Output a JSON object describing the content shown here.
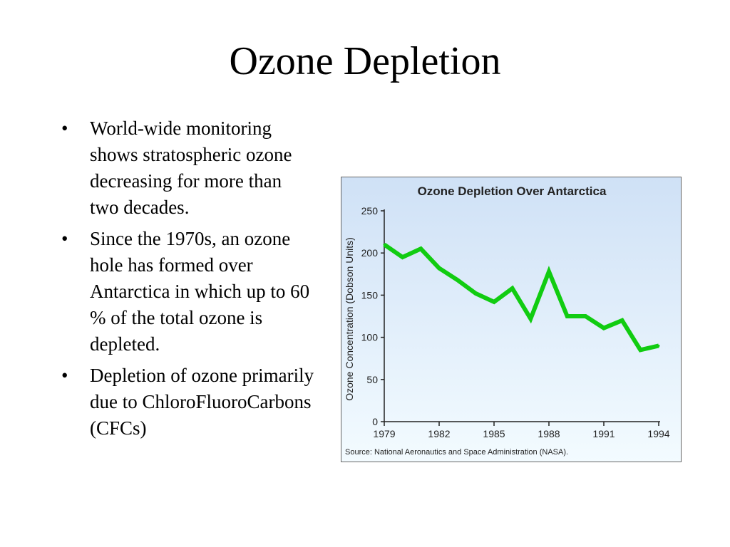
{
  "slide": {
    "title": "Ozone Depletion",
    "bullets": [
      "World-wide monitoring shows stratospheric ozone decreasing for more than two decades.",
      "Since the 1970s, an ozone hole has formed over Antarctica in which up to 60 % of the total ozone is depleted.",
      "Depletion of ozone primarily due to ChloroFluoroCarbons (CFCs)"
    ],
    "bullet_symbol": "•"
  },
  "chart_data": {
    "type": "line",
    "title": "Ozone Depletion Over Antarctica",
    "ylabel": "Ozone Concentration (Dobson Units)",
    "xlabel": "",
    "source": "Source: National Aeronautics and Space Administration (NASA).",
    "xlim": [
      1979,
      1994
    ],
    "ylim": [
      0,
      250
    ],
    "xticks": [
      1979,
      1982,
      1985,
      1988,
      1991,
      1994
    ],
    "yticks": [
      0,
      50,
      100,
      150,
      200,
      250
    ],
    "grid": false,
    "series": [
      {
        "color": "#11cc11",
        "x": [
          1979,
          1980,
          1981,
          1982,
          1983,
          1984,
          1985,
          1986,
          1987,
          1988,
          1989,
          1990,
          1991,
          1992,
          1993,
          1994
        ],
        "y": [
          210,
          195,
          205,
          182,
          168,
          152,
          142,
          158,
          122,
          178,
          125,
          125,
          111,
          120,
          85,
          90
        ]
      }
    ],
    "colors": {
      "background_top": "#cfe1f6",
      "background_bottom": "#f3fbff",
      "border": "#666666",
      "axis": "#222222"
    }
  }
}
